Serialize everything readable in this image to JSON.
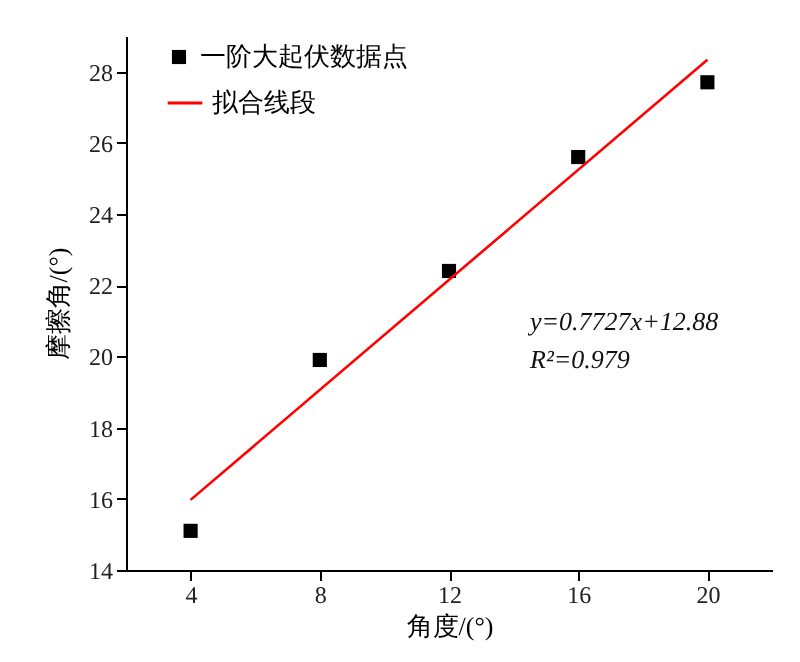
{
  "chart_data": {
    "type": "scatter",
    "xlabel": "角度/(°)",
    "ylabel": "摩擦角/(°)",
    "xlim": [
      2,
      22
    ],
    "xticks": [
      4,
      8,
      12,
      16,
      20
    ],
    "ylim": [
      14,
      29
    ],
    "yticks": [
      14,
      16,
      18,
      20,
      22,
      24,
      26,
      28
    ],
    "legend": "top left",
    "grid": false,
    "series": [
      {
        "name": "一阶大起伏数据点",
        "type": "scatter",
        "marker": "square",
        "color": "#000000",
        "x": [
          4,
          8,
          12,
          16,
          20
        ],
        "values": [
          15.1,
          19.9,
          22.4,
          25.6,
          27.7
        ]
      },
      {
        "name": "拟合线段",
        "type": "line",
        "color": "#ff0000",
        "x": [
          4,
          20
        ],
        "values": [
          15.97,
          28.33
        ]
      }
    ],
    "annotations": [
      "y=0.7727x+12.88",
      "R²=0.979"
    ]
  }
}
